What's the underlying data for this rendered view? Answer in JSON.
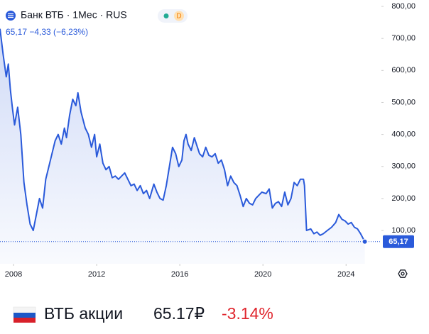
{
  "chart_data": {
    "type": "line",
    "title": "Банк ВТБ · 1Мес · RUS",
    "badge": "D",
    "subtitle": "65,17 −4,33 (−6,23%)",
    "color": "#2a5ada",
    "xlim": [
      2007.35,
      2025.7
    ],
    "xticks": [
      2008,
      2012,
      2016,
      2020,
      2024
    ],
    "ylim": [
      -4,
      820
    ],
    "yticks": [
      {
        "value": 100,
        "label": "100,00"
      },
      {
        "value": 200,
        "label": "200,00"
      },
      {
        "value": 300,
        "label": "300,00"
      },
      {
        "value": 400,
        "label": "400,00"
      },
      {
        "value": 500,
        "label": "500,00"
      },
      {
        "value": 600,
        "label": "600,00"
      },
      {
        "value": 700,
        "label": "700,00"
      },
      {
        "value": 800,
        "label": "800,00"
      }
    ],
    "x": [
      2007.35,
      2007.5,
      2007.65,
      2007.75,
      2007.85,
      2007.95,
      2008.05,
      2008.2,
      2008.35,
      2008.5,
      2008.65,
      2008.8,
      2008.95,
      2009.1,
      2009.25,
      2009.4,
      2009.55,
      2009.7,
      2009.85,
      2010.0,
      2010.15,
      2010.3,
      2010.45,
      2010.55,
      2010.7,
      2010.85,
      2011.0,
      2011.1,
      2011.25,
      2011.45,
      2011.6,
      2011.75,
      2011.9,
      2012.0,
      2012.15,
      2012.3,
      2012.45,
      2012.6,
      2012.75,
      2012.9,
      2013.05,
      2013.2,
      2013.35,
      2013.5,
      2013.65,
      2013.8,
      2013.95,
      2014.1,
      2014.25,
      2014.4,
      2014.55,
      2014.75,
      2014.9,
      2015.05,
      2015.2,
      2015.35,
      2015.5,
      2015.65,
      2015.8,
      2015.95,
      2016.1,
      2016.2,
      2016.3,
      2016.4,
      2016.55,
      2016.7,
      2016.8,
      2016.95,
      2017.1,
      2017.25,
      2017.4,
      2017.55,
      2017.7,
      2017.85,
      2018.0,
      2018.15,
      2018.3,
      2018.45,
      2018.6,
      2018.75,
      2018.9,
      2019.05,
      2019.2,
      2019.35,
      2019.5,
      2019.65,
      2019.8,
      2019.95,
      2020.15,
      2020.3,
      2020.45,
      2020.6,
      2020.75,
      2020.9,
      2021.05,
      2021.2,
      2021.35,
      2021.5,
      2021.65,
      2021.8,
      2021.95,
      2022.0,
      2022.1,
      2022.3,
      2022.45,
      2022.6,
      2022.75,
      2022.9,
      2023.1,
      2023.3,
      2023.5,
      2023.65,
      2023.8,
      2023.95,
      2024.1,
      2024.25,
      2024.4,
      2024.55,
      2024.7,
      2024.9
    ],
    "values": [
      730,
      650,
      580,
      620,
      540,
      480,
      430,
      485,
      400,
      250,
      180,
      120,
      100,
      150,
      200,
      170,
      260,
      300,
      340,
      380,
      400,
      370,
      420,
      390,
      460,
      510,
      490,
      530,
      470,
      420,
      400,
      360,
      400,
      330,
      370,
      310,
      290,
      300,
      265,
      270,
      260,
      270,
      280,
      260,
      240,
      245,
      225,
      240,
      215,
      225,
      200,
      245,
      220,
      200,
      195,
      240,
      300,
      360,
      340,
      300,
      320,
      380,
      400,
      370,
      350,
      390,
      370,
      340,
      330,
      360,
      335,
      330,
      340,
      310,
      320,
      290,
      240,
      270,
      250,
      240,
      210,
      175,
      200,
      185,
      180,
      200,
      210,
      220,
      215,
      230,
      170,
      185,
      190,
      175,
      220,
      180,
      200,
      250,
      240,
      260,
      260,
      240,
      100,
      105,
      90,
      95,
      85,
      90,
      100,
      110,
      125,
      150,
      135,
      130,
      120,
      125,
      110,
      105,
      90,
      65.17
    ],
    "last_value_label": "65,17",
    "footer": {
      "name": "ВТБ акции",
      "price": "65.17₽",
      "change": "-3.14%"
    }
  }
}
